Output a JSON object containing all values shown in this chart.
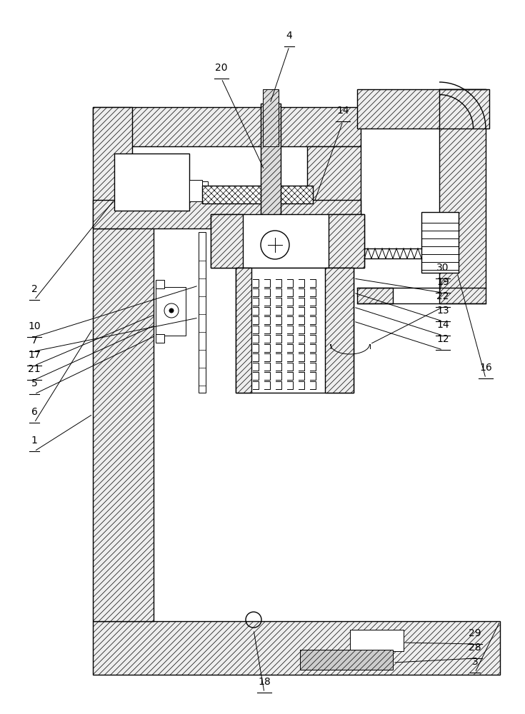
{
  "bg_color": "#ffffff",
  "lw": 1.0,
  "lw_thin": 0.7,
  "hatch_lw": 0.5,
  "fig_width": 7.35,
  "fig_height": 10.0,
  "dpi": 100
}
